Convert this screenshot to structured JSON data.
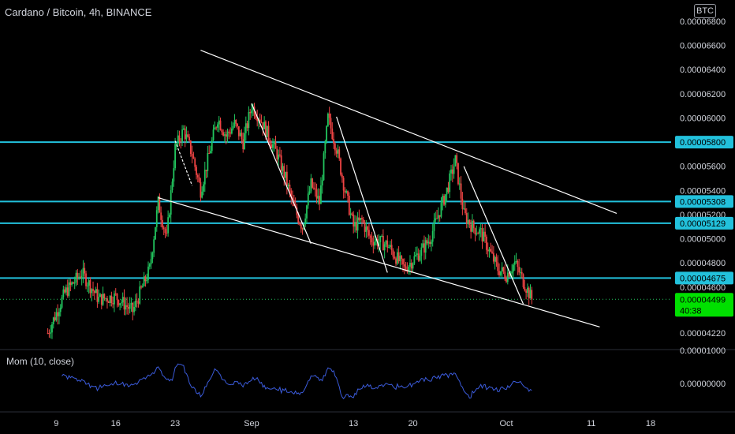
{
  "header": {
    "title": "Cardano / Bitcoin, 4h, BINANCE",
    "currency_badge": "BTC"
  },
  "oscillator": {
    "label": "Mom (10, close)",
    "axis_ticks": [
      "0.00001000",
      "0.00000000"
    ]
  },
  "countdown": "40:38",
  "colors": {
    "background": "#000000",
    "up": "#22c55e",
    "down": "#ef4444",
    "level": "#22c1dc",
    "last_price": "#00e000",
    "momentum": "#3b5bdb",
    "trendline": "#ffffff"
  },
  "chart_data": [
    {
      "type": "candlestick",
      "title": "Cardano / Bitcoin, 4h, BINANCE",
      "x_tick_labels": [
        "9",
        "16",
        "23",
        "Sep",
        "13",
        "20",
        "Oct",
        "11",
        "18"
      ],
      "y_tick_labels": [
        "0.00006800",
        "0.00006600",
        "0.00006400",
        "0.00006200",
        "0.00006000",
        "0.00005600",
        "0.00005400",
        "0.00005200",
        "0.00005000",
        "0.00004800",
        "0.00004600",
        "0.00004220"
      ],
      "ylim": [
        4.18e-05,
        6.86e-05
      ],
      "horizontal_levels": [
        5.8e-05,
        5.308e-05,
        5.129e-05,
        4.675e-05
      ],
      "level_labels": [
        "0.00005800",
        "0.00005308",
        "0.00005129",
        "0.00004675"
      ],
      "last_price": 4.499e-05,
      "last_price_label": "0.00004499",
      "price_anchors": [
        [
          "Aug 8",
          4.22e-05
        ],
        [
          "Aug 10",
          4.55e-05
        ],
        [
          "Aug 12",
          4.72e-05
        ],
        [
          "Aug 14",
          4.5e-05
        ],
        [
          "Aug 16",
          4.52e-05
        ],
        [
          "Aug 18",
          4.4e-05
        ],
        [
          "Aug 20",
          4.75e-05
        ],
        [
          "Aug 21",
          5.3e-05
        ],
        [
          "Aug 22",
          5e-05
        ],
        [
          "Aug 23",
          5.75e-05
        ],
        [
          "Aug 24",
          5.9e-05
        ],
        [
          "Aug 25",
          5.7e-05
        ],
        [
          "Aug 26",
          5.4e-05
        ],
        [
          "Aug 28",
          6e-05
        ],
        [
          "Aug 29",
          5.85e-05
        ],
        [
          "Aug 30",
          5.95e-05
        ],
        [
          "Aug 31",
          5.8e-05
        ],
        [
          "Sep 1",
          6.1e-05
        ],
        [
          "Sep 2",
          6e-05
        ],
        [
          "Sep 3",
          5.85e-05
        ],
        [
          "Sep 4",
          5.7e-05
        ],
        [
          "Sep 5",
          5.5e-05
        ],
        [
          "Sep 6",
          5.25e-05
        ],
        [
          "Sep 7",
          5.1e-05
        ],
        [
          "Sep 8",
          5.45e-05
        ],
        [
          "Sep 9",
          5.3e-05
        ],
        [
          "Sep 10",
          6e-05
        ],
        [
          "Sep 11",
          5.75e-05
        ],
        [
          "Sep 12",
          5.4e-05
        ],
        [
          "Sep 13",
          5.1e-05
        ],
        [
          "Sep 14",
          5.15e-05
        ],
        [
          "Sep 15",
          5e-05
        ],
        [
          "Sep 17",
          4.95e-05
        ],
        [
          "Sep 19",
          4.75e-05
        ],
        [
          "Sep 21",
          4.9e-05
        ],
        [
          "Sep 22",
          5e-05
        ],
        [
          "Sep 23",
          5.2e-05
        ],
        [
          "Sep 24",
          5.4e-05
        ],
        [
          "Sep 25",
          5.65e-05
        ],
        [
          "Sep 26",
          5.2e-05
        ],
        [
          "Sep 27",
          5.1e-05
        ],
        [
          "Sep 28",
          5.05e-05
        ],
        [
          "Sep 29",
          4.9e-05
        ],
        [
          "Sep 30",
          4.75e-05
        ],
        [
          "Oct 1",
          4.7e-05
        ],
        [
          "Oct 2",
          4.8e-05
        ],
        [
          "Oct 3",
          4.65e-05
        ],
        [
          "Oct 4",
          4.5e-05
        ]
      ],
      "trend_lines": [
        {
          "from": [
            "Aug 26",
            6.56e-05
          ],
          "to": [
            "Oct 14",
            5.21e-05
          ],
          "color": "#ffffff"
        },
        {
          "from": [
            "Aug 21",
            5.34e-05
          ],
          "to": [
            "Oct 12",
            4.27e-05
          ],
          "color": "#ffffff"
        },
        {
          "from": [
            "Aug 23",
            5.81e-05
          ],
          "to": [
            "Aug 25",
            5.44e-05
          ],
          "color": "#ffffff",
          "dashed": true
        },
        {
          "from": [
            "Sep 1",
            6.12e-05
          ],
          "to": [
            "Sep 8",
            4.96e-05
          ],
          "color": "#ffffff"
        },
        {
          "from": [
            "Sep 11",
            6.01e-05
          ],
          "to": [
            "Sep 17",
            4.72e-05
          ],
          "color": "#ffffff"
        },
        {
          "from": [
            "Sep 26",
            5.6e-05
          ],
          "to": [
            "Oct 3",
            4.46e-05
          ],
          "color": "#ffffff"
        }
      ]
    }
  ]
}
